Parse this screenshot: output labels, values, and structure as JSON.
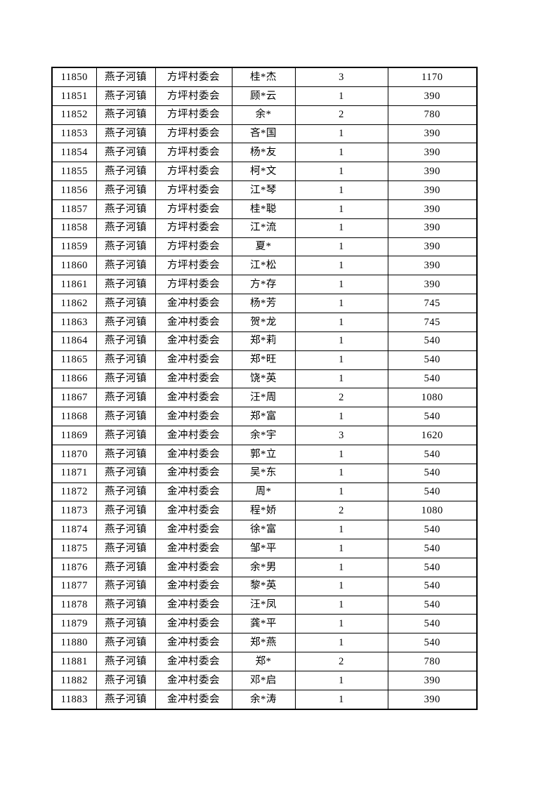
{
  "page": {
    "background_color": "#ffffff",
    "text_color": "#000000",
    "border_color": "#000000"
  },
  "table": {
    "rows": [
      [
        "11850",
        "燕子河镇",
        "方坪村委会",
        "桂*杰",
        "3",
        "1170"
      ],
      [
        "11851",
        "燕子河镇",
        "方坪村委会",
        "顾*云",
        "1",
        "390"
      ],
      [
        "11852",
        "燕子河镇",
        "方坪村委会",
        "余*",
        "2",
        "780"
      ],
      [
        "11853",
        "燕子河镇",
        "方坪村委会",
        "吝*国",
        "1",
        "390"
      ],
      [
        "11854",
        "燕子河镇",
        "方坪村委会",
        "杨*友",
        "1",
        "390"
      ],
      [
        "11855",
        "燕子河镇",
        "方坪村委会",
        "柯*文",
        "1",
        "390"
      ],
      [
        "11856",
        "燕子河镇",
        "方坪村委会",
        "江*琴",
        "1",
        "390"
      ],
      [
        "11857",
        "燕子河镇",
        "方坪村委会",
        "桂*聪",
        "1",
        "390"
      ],
      [
        "11858",
        "燕子河镇",
        "方坪村委会",
        "江*流",
        "1",
        "390"
      ],
      [
        "11859",
        "燕子河镇",
        "方坪村委会",
        "夏*",
        "1",
        "390"
      ],
      [
        "11860",
        "燕子河镇",
        "方坪村委会",
        "江*松",
        "1",
        "390"
      ],
      [
        "11861",
        "燕子河镇",
        "方坪村委会",
        "方*存",
        "1",
        "390"
      ],
      [
        "11862",
        "燕子河镇",
        "金冲村委会",
        "杨*芳",
        "1",
        "745"
      ],
      [
        "11863",
        "燕子河镇",
        "金冲村委会",
        "贺*龙",
        "1",
        "745"
      ],
      [
        "11864",
        "燕子河镇",
        "金冲村委会",
        "郑*莉",
        "1",
        "540"
      ],
      [
        "11865",
        "燕子河镇",
        "金冲村委会",
        "郑*旺",
        "1",
        "540"
      ],
      [
        "11866",
        "燕子河镇",
        "金冲村委会",
        "饶*英",
        "1",
        "540"
      ],
      [
        "11867",
        "燕子河镇",
        "金冲村委会",
        "汪*周",
        "2",
        "1080"
      ],
      [
        "11868",
        "燕子河镇",
        "金冲村委会",
        "郑*富",
        "1",
        "540"
      ],
      [
        "11869",
        "燕子河镇",
        "金冲村委会",
        "余*宇",
        "3",
        "1620"
      ],
      [
        "11870",
        "燕子河镇",
        "金冲村委会",
        "郭*立",
        "1",
        "540"
      ],
      [
        "11871",
        "燕子河镇",
        "金冲村委会",
        "吴*东",
        "1",
        "540"
      ],
      [
        "11872",
        "燕子河镇",
        "金冲村委会",
        "周*",
        "1",
        "540"
      ],
      [
        "11873",
        "燕子河镇",
        "金冲村委会",
        "程*娇",
        "2",
        "1080"
      ],
      [
        "11874",
        "燕子河镇",
        "金冲村委会",
        "徐*富",
        "1",
        "540"
      ],
      [
        "11875",
        "燕子河镇",
        "金冲村委会",
        "邹*平",
        "1",
        "540"
      ],
      [
        "11876",
        "燕子河镇",
        "金冲村委会",
        "余*男",
        "1",
        "540"
      ],
      [
        "11877",
        "燕子河镇",
        "金冲村委会",
        "黎*英",
        "1",
        "540"
      ],
      [
        "11878",
        "燕子河镇",
        "金冲村委会",
        "汪*凤",
        "1",
        "540"
      ],
      [
        "11879",
        "燕子河镇",
        "金冲村委会",
        "龚*平",
        "1",
        "540"
      ],
      [
        "11880",
        "燕子河镇",
        "金冲村委会",
        "郑*燕",
        "1",
        "540"
      ],
      [
        "11881",
        "燕子河镇",
        "金冲村委会",
        "郑*",
        "2",
        "780"
      ],
      [
        "11882",
        "燕子河镇",
        "金冲村委会",
        "邓*启",
        "1",
        "390"
      ],
      [
        "11883",
        "燕子河镇",
        "金冲村委会",
        "余*涛",
        "1",
        "390"
      ]
    ]
  }
}
